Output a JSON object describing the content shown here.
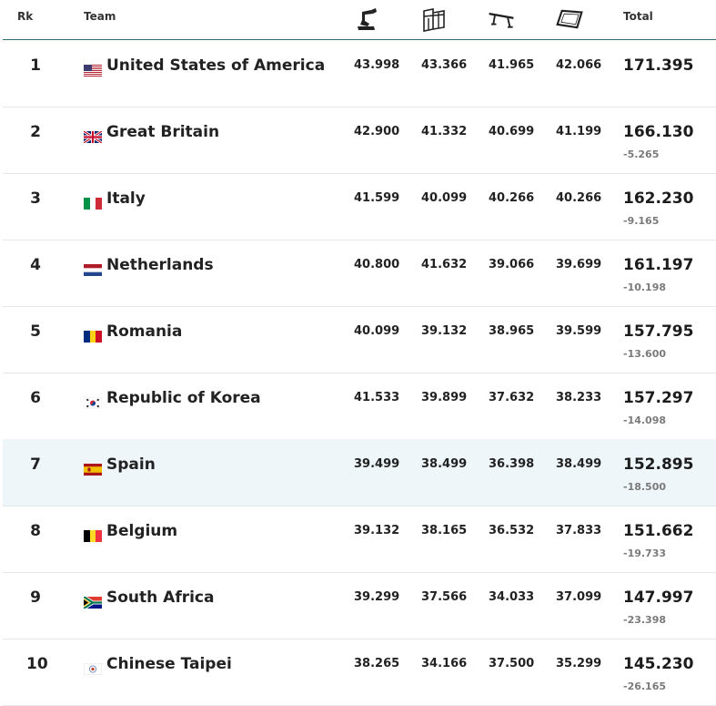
{
  "header": {
    "rank": "Rk",
    "team": "Team",
    "total": "Total",
    "apparatus_icons": [
      "vault-icon",
      "uneven-bars-icon",
      "balance-beam-icon",
      "floor-exercise-icon"
    ]
  },
  "rows": [
    {
      "rank": "1",
      "team": "United States of America",
      "flag": "usa-flag-icon",
      "scores": [
        "43.998",
        "43.366",
        "41.965",
        "42.066"
      ],
      "total": "171.395",
      "gap": ""
    },
    {
      "rank": "2",
      "team": "Great Britain",
      "flag": "gbr-flag-icon",
      "scores": [
        "42.900",
        "41.332",
        "40.699",
        "41.199"
      ],
      "total": "166.130",
      "gap": "-5.265"
    },
    {
      "rank": "3",
      "team": "Italy",
      "flag": "ita-flag-icon",
      "scores": [
        "41.599",
        "40.099",
        "40.266",
        "40.266"
      ],
      "total": "162.230",
      "gap": "-9.165"
    },
    {
      "rank": "4",
      "team": "Netherlands",
      "flag": "ned-flag-icon",
      "scores": [
        "40.800",
        "41.632",
        "39.066",
        "39.699"
      ],
      "total": "161.197",
      "gap": "-10.198"
    },
    {
      "rank": "5",
      "team": "Romania",
      "flag": "rou-flag-icon",
      "scores": [
        "40.099",
        "39.132",
        "38.965",
        "39.599"
      ],
      "total": "157.795",
      "gap": "-13.600"
    },
    {
      "rank": "6",
      "team": "Republic of Korea",
      "flag": "kor-flag-icon",
      "scores": [
        "41.533",
        "39.899",
        "37.632",
        "38.233"
      ],
      "total": "157.297",
      "gap": "-14.098"
    },
    {
      "rank": "7",
      "team": "Spain",
      "flag": "esp-flag-icon",
      "scores": [
        "39.499",
        "38.499",
        "36.398",
        "38.499"
      ],
      "total": "152.895",
      "gap": "-18.500",
      "highlight": true
    },
    {
      "rank": "8",
      "team": "Belgium",
      "flag": "bel-flag-icon",
      "scores": [
        "39.132",
        "38.165",
        "36.532",
        "37.833"
      ],
      "total": "151.662",
      "gap": "-19.733"
    },
    {
      "rank": "9",
      "team": "South Africa",
      "flag": "rsa-flag-icon",
      "scores": [
        "39.299",
        "37.566",
        "34.033",
        "37.099"
      ],
      "total": "147.997",
      "gap": "-23.398"
    },
    {
      "rank": "10",
      "team": "Chinese Taipei",
      "flag": "tpe-flag-icon",
      "scores": [
        "38.265",
        "34.166",
        "37.500",
        "35.299"
      ],
      "total": "145.230",
      "gap": "-26.165"
    }
  ]
}
